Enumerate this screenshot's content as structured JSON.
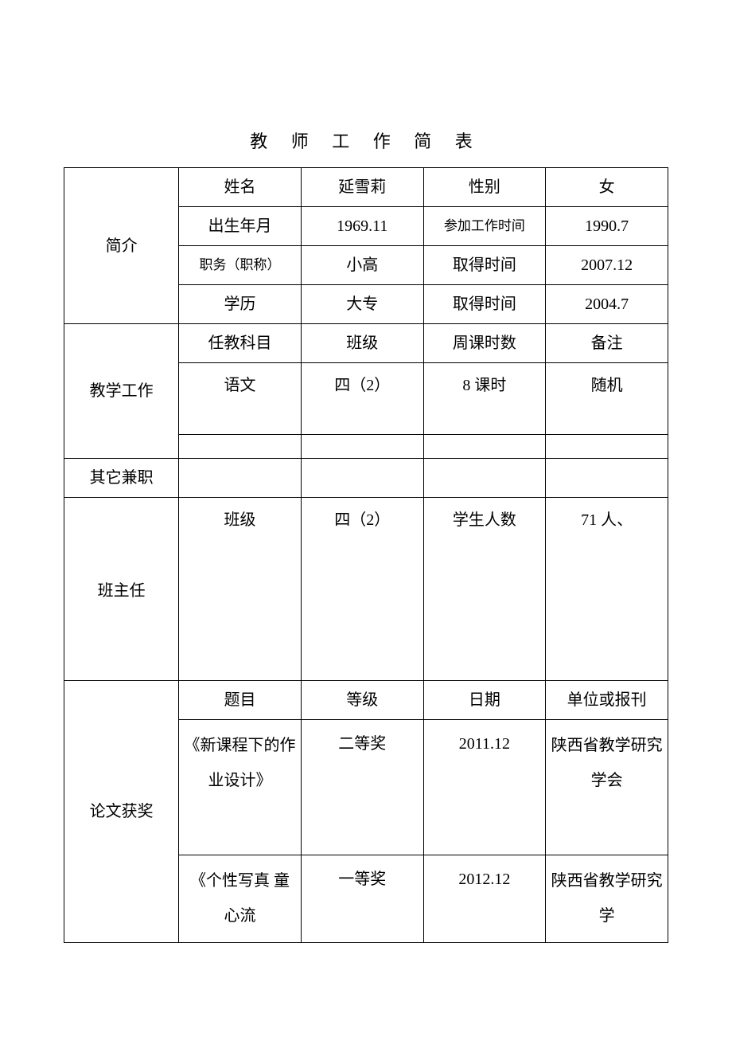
{
  "title": "教  师  工  作  简    表",
  "section_labels": {
    "intro": "简介",
    "teaching": "教学工作",
    "other_job": "其它兼职",
    "class_teacher": "班主任",
    "paper_award": "论文获奖"
  },
  "intro": {
    "name_label": "姓名",
    "name_value": "延雪莉",
    "gender_label": "性别",
    "gender_value": "女",
    "birth_label": "出生年月",
    "birth_value": "1969.11",
    "work_start_label": "参加工作时间",
    "work_start_value": "1990.7",
    "title_label": "职务（职称）",
    "title_value": "小高",
    "title_date_label": "取得时间",
    "title_date_value": "2007.12",
    "edu_label": "学历",
    "edu_value": "大专",
    "edu_date_label": "取得时间",
    "edu_date_value": "2004.7"
  },
  "teaching": {
    "subject_header": "任教科目",
    "class_header": "班级",
    "hours_header": "周课时数",
    "note_header": "备注",
    "subject_value": "语文",
    "class_value": "四（2）",
    "hours_value": "8 课时",
    "note_value": "随机"
  },
  "class_teacher": {
    "class_label": "班级",
    "class_value": "四（2）",
    "students_label": "学生人数",
    "students_value": "71 人、"
  },
  "paper": {
    "topic_header": "题目",
    "grade_header": "等级",
    "date_header": "日期",
    "org_header": "单位或报刊",
    "row1": {
      "topic": "《新课程下的作业设计》",
      "grade": "二等奖",
      "date": "2011.12",
      "org": "陕西省教学研究学会"
    },
    "row2": {
      "topic": "《个性写真 童心流",
      "grade": "一等奖",
      "date": "2012.12",
      "org": "陕西省教学研究学"
    }
  },
  "styles": {
    "text_color": "#000000",
    "border_color": "#000000",
    "background_color": "#ffffff",
    "base_font_size": 20,
    "title_font_size": 22,
    "small_font_size": 17
  }
}
